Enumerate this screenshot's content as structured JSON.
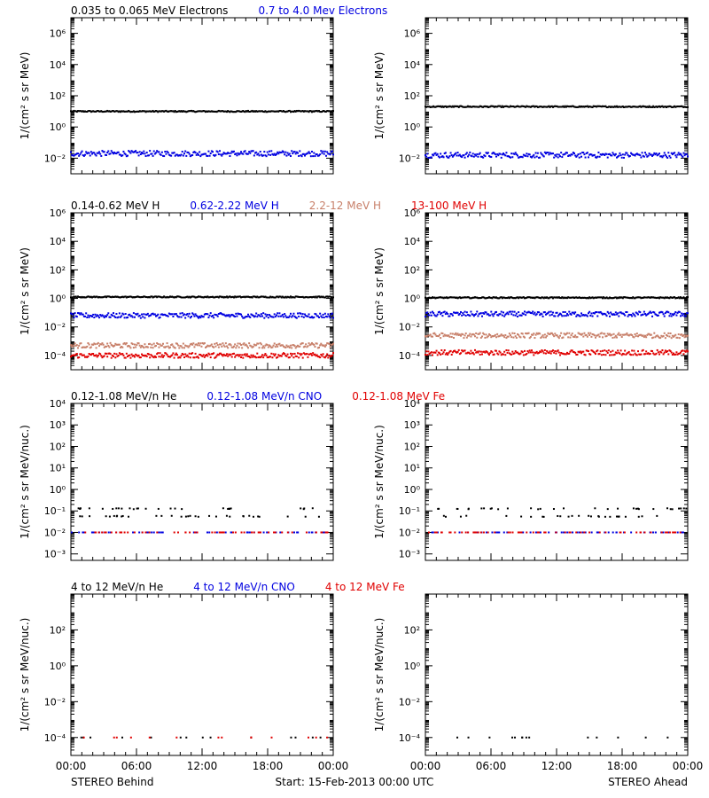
{
  "colors": {
    "black": "#000000",
    "blue": "#0000e0",
    "tan": "#c8806a",
    "red": "#e00000"
  },
  "legends": [
    [
      {
        "text": "0.035 to 0.065 MeV Electrons",
        "color": "#000000"
      },
      {
        "text": "0.7 to 4.0 Mev Electrons",
        "color": "#0000e0"
      }
    ],
    [
      {
        "text": "0.14-0.62 MeV H",
        "color": "#000000"
      },
      {
        "text": "0.62-2.22 MeV H",
        "color": "#0000e0"
      },
      {
        "text": "2.2-12 MeV H",
        "color": "#c8806a"
      },
      {
        "text": "13-100 MeV H",
        "color": "#e00000"
      }
    ],
    [
      {
        "text": "0.12-1.08 MeV/n He",
        "color": "#000000"
      },
      {
        "text": "0.12-1.08 MeV/n CNO",
        "color": "#0000e0"
      },
      {
        "text": "0.12-1.08 MeV Fe",
        "color": "#e00000"
      }
    ],
    [
      {
        "text": "4 to 12 MeV/n He",
        "color": "#000000"
      },
      {
        "text": "4 to 12 MeV/n CNO",
        "color": "#0000e0"
      },
      {
        "text": "4 to 12 MeV Fe",
        "color": "#e00000"
      }
    ]
  ],
  "ylabels": [
    "1/(cm² s sr MeV)",
    "1/(cm² s sr MeV)",
    "1/(cm² s sr MeV/nuc.)",
    "1/(cm² s sr MeV/nuc.)"
  ],
  "ytick_labels": [
    [
      "10⁻²",
      "10⁰",
      "10²",
      "10⁴",
      "10⁶"
    ],
    [
      "10⁻⁴",
      "10⁻²",
      "10⁰",
      "10²",
      "10⁴",
      "10⁶"
    ],
    [
      "10⁻³",
      "10⁻²",
      "10⁻¹",
      "10⁰",
      "10¹",
      "10²",
      "10³",
      "10⁴"
    ],
    [
      "10⁻⁴",
      "10⁻²",
      "10⁰",
      "10²"
    ]
  ],
  "xtick_labels": [
    "00:00",
    "06:00",
    "12:00",
    "18:00",
    "00:00"
  ],
  "footer": {
    "left": "STEREO Behind",
    "center": "Start: 15-Feb-2013 00:00 UTC",
    "right": "STEREO Ahead"
  },
  "chart_data": {
    "type": "scatter",
    "x_unit": "hours since start",
    "xlim": [
      0,
      24
    ],
    "y_scale": "log",
    "rows": [
      {
        "ylim_log10": [
          -3,
          7
        ],
        "ytick_log10": [
          -2,
          0,
          2,
          4,
          6
        ],
        "behind": [
          {
            "log10_flux": 1.0,
            "color": "#000000"
          },
          {
            "log10_flux": -1.7,
            "color": "#0000e0"
          }
        ],
        "ahead": [
          {
            "log10_flux": 1.3,
            "color": "#000000"
          },
          {
            "log10_flux": -1.8,
            "color": "#0000e0"
          }
        ]
      },
      {
        "ylim_log10": [
          -5,
          6
        ],
        "ytick_log10": [
          -4,
          -2,
          0,
          2,
          4,
          6
        ],
        "behind": [
          {
            "log10_flux": 0.1,
            "color": "#000000"
          },
          {
            "log10_flux": -1.2,
            "color": "#0000e0"
          },
          {
            "log10_flux": -3.3,
            "color": "#c8806a"
          },
          {
            "log10_flux": -4.0,
            "color": "#e00000"
          }
        ],
        "ahead": [
          {
            "log10_flux": 0.05,
            "color": "#000000"
          },
          {
            "log10_flux": -1.1,
            "color": "#0000e0"
          },
          {
            "log10_flux": -2.6,
            "color": "#c8806a"
          },
          {
            "log10_flux": -3.8,
            "color": "#e00000"
          }
        ]
      },
      {
        "ylim_log10": [
          -3.3,
          4
        ],
        "ytick_log10": [
          -3,
          -2,
          -1,
          0,
          1,
          2,
          3,
          4
        ],
        "behind": [
          {
            "log10_flux": -1.25,
            "color": "#000000"
          },
          {
            "log10_flux": -2.0,
            "color": "#0000e0"
          },
          {
            "log10_flux": -2.0,
            "color": "#e00000"
          }
        ],
        "ahead": [
          {
            "log10_flux": -1.25,
            "color": "#000000"
          },
          {
            "log10_flux": -2.0,
            "color": "#0000e0"
          },
          {
            "log10_flux": -2.0,
            "color": "#e00000"
          }
        ]
      },
      {
        "ylim_log10": [
          -5,
          4
        ],
        "ytick_log10": [
          -4,
          -2,
          0,
          2
        ],
        "behind": [
          {
            "log10_flux": -4.0,
            "color": "#000000"
          },
          {
            "log10_flux": -4.0,
            "color": "#e00000"
          }
        ],
        "ahead": [
          {
            "log10_flux": -4.0,
            "color": "#000000"
          }
        ]
      }
    ]
  }
}
